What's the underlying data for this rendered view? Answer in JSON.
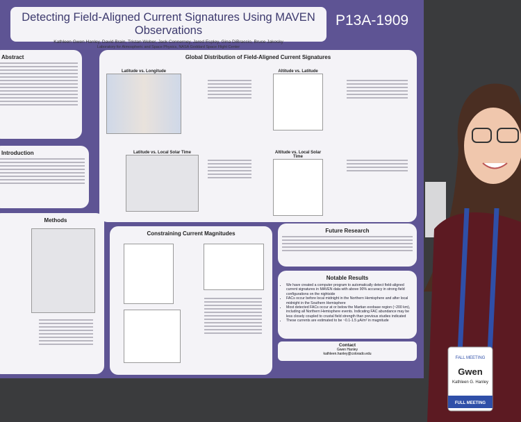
{
  "poster": {
    "title": "Detecting Field-Aligned Current Signatures Using MAVEN Observations",
    "authors": "Kathleen Gwen Hanley, David Brain, Tristan Weber, Jack Connerney, Jared Espley, Gina DiBraccio, Bruce Jakosky",
    "affiliations": "Laboratory for Atmospheric and Space Physics, NASA Goddard Space Flight Center",
    "poster_id": "P13A-1909",
    "sections": {
      "abstract": "Abstract",
      "introduction": "Introduction",
      "methods": "Methods",
      "global": "Global Distribution of Field-Aligned Current Signatures",
      "constraining": "Constraining Current Magnitudes",
      "future": "Future Research",
      "results": "Notable Results",
      "contact": "Contact"
    },
    "plots": [
      "Latitude vs. Longitude",
      "Altitude vs. Latitude",
      "Latitude vs. Local Solar Time",
      "Altitude vs. Local Solar Time"
    ],
    "results": [
      "We have created a computer program to automatically detect field-aligned current signatures in MAVEN data with above 90% accuracy in strong field configurations on the nightside",
      "FACs occur before local midnight in the Northern Hemisphere and after local midnight in the Southern Hemisphere",
      "Most detected FACs occur at or below the Martian exobase region (~200 km), including all Northern Hemisphere events. Indicating FAC abundance may be less closely coupled to crustal field strength than previous studies indicated",
      "These currents are estimated to be ~0.1-1.5 μA/m² in magnitude"
    ],
    "contact": {
      "name": "Gwen Hanley",
      "email": "kathleen.hanley@colorado.edu"
    }
  },
  "badge": {
    "first_name": "Gwen",
    "full_name": "Kathleen G. Hanley",
    "meeting": "FALL MEETING",
    "type": "FULL MEETING"
  }
}
